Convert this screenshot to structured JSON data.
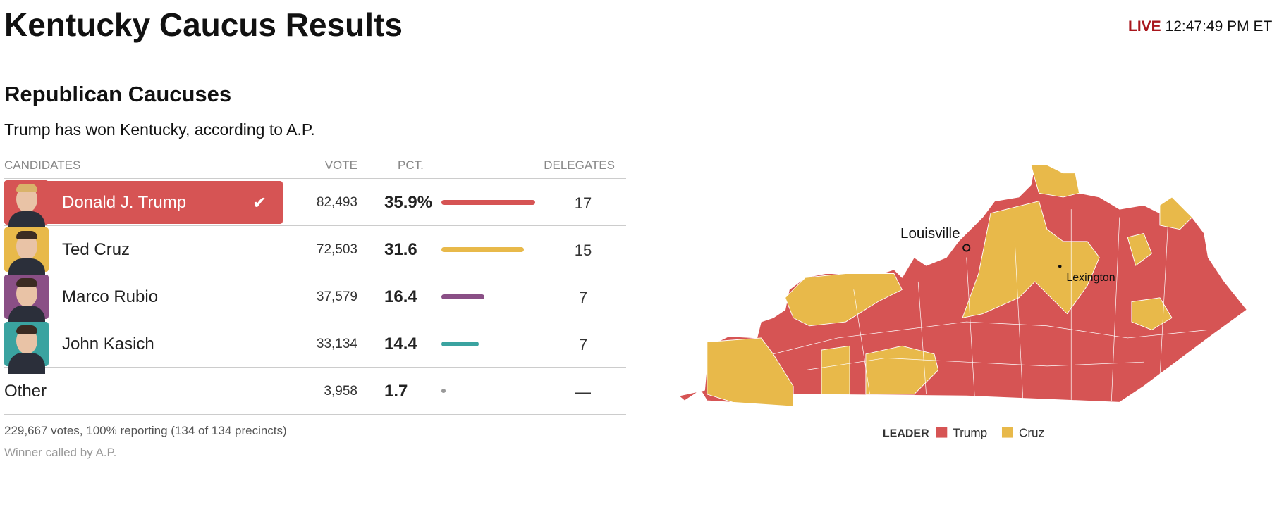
{
  "header": {
    "title": "Kentucky Caucus Results",
    "live": "LIVE",
    "time": "12:47:49 PM ET"
  },
  "race": {
    "title": "Republican Caucuses",
    "summary": "Trump has won Kentucky, according to A.P.",
    "table": {
      "columns": [
        "CANDIDATES",
        "VOTE",
        "PCT.",
        "DELEGATES"
      ],
      "rows": [
        {
          "name": "Donald J. Trump",
          "vote": "82,493",
          "pct": 35.9,
          "pct_label": "35.9%",
          "delegates": 17,
          "color": "#d65454",
          "winner": true
        },
        {
          "name": "Ted Cruz",
          "vote": "72,503",
          "pct": 31.6,
          "delegates": 15,
          "color": "#e8b94a"
        },
        {
          "name": "Marco Rubio",
          "vote": "37,579",
          "pct": 16.4,
          "delegates": 7,
          "color": "#8a4f86"
        },
        {
          "name": "John Kasich",
          "vote": "33,134",
          "pct": 14.4,
          "delegates": 7,
          "color": "#3aa3a0"
        },
        {
          "name": "Other",
          "vote": "3,958",
          "pct": 1.7,
          "delegates": "—",
          "color": "#999999"
        }
      ]
    },
    "footer": [
      "229,667 votes, 100% reporting (134 of 134 precincts)",
      "Winner called by A.P."
    ]
  },
  "map": {
    "cities": [
      "Louisville",
      "Lexington"
    ],
    "legend": {
      "title": "LEADER",
      "items": [
        {
          "name": "Trump",
          "color": "#d65454"
        },
        {
          "name": "Cruz",
          "color": "#e8b94a"
        }
      ]
    }
  }
}
